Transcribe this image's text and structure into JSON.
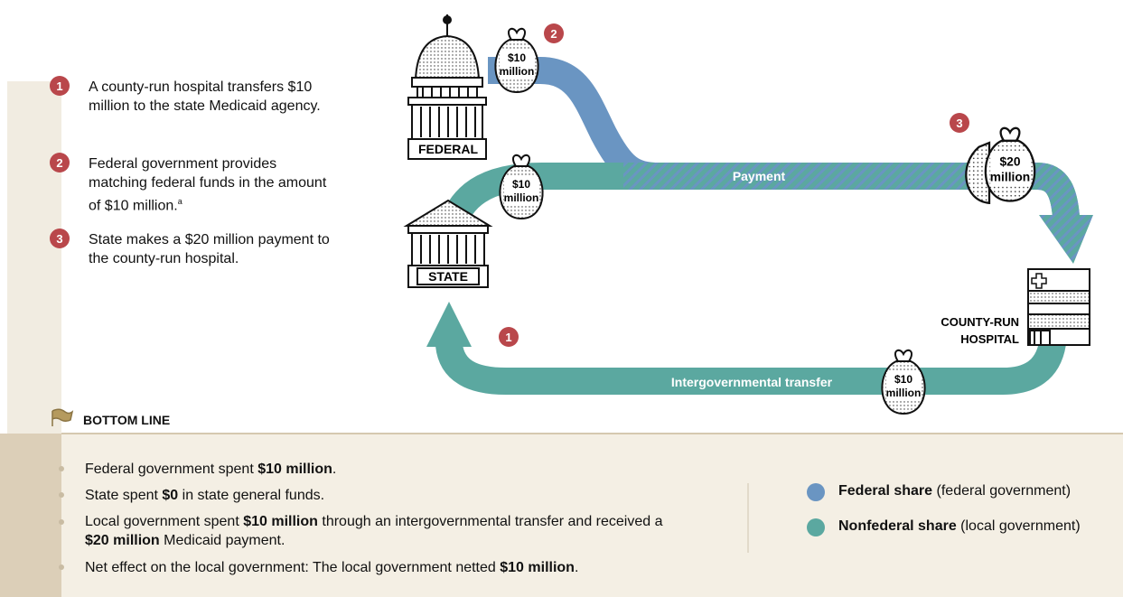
{
  "steps": [
    {
      "number": "1",
      "text": "A county-run hospital transfers $10 million to the state Medicaid agency."
    },
    {
      "number": "2",
      "text": "Federal government provides matching federal funds in the amount of $10 million.",
      "footnote": "a"
    },
    {
      "number": "3",
      "text": "State makes a $20 million payment to the county-run hospital."
    }
  ],
  "diagram": {
    "nodes": [
      {
        "lines": [
          "FEDERAL"
        ]
      },
      {
        "lines": [
          "STATE"
        ]
      },
      {
        "lines": [
          "COUNTY-RUN",
          "HOSPITAL"
        ]
      }
    ],
    "badges": [
      "2",
      "3",
      "1"
    ],
    "bags": [
      {
        "lines": [
          "$10",
          "million"
        ]
      },
      {
        "lines": [
          "$10",
          "million"
        ]
      },
      {
        "lines": [
          "$20",
          "million"
        ]
      },
      {
        "lines": [
          "$10",
          "million"
        ]
      }
    ],
    "flows": [
      "Payment",
      "Intergovernmental transfer"
    ]
  },
  "bottom_line": {
    "title": "BOTTOM LINE",
    "items": [
      [
        "Federal government spent ",
        "$10 million",
        "."
      ],
      [
        "State spent ",
        "$0",
        " in state general funds."
      ],
      [
        "Local government spent ",
        "$10 million",
        " through an intergovernmental transfer and received a ",
        "$20 million",
        " Medicaid payment."
      ],
      [
        "Net effect on the local government: The local government netted ",
        "$10 million",
        "."
      ]
    ]
  },
  "legend": [
    {
      "name": "Federal share",
      "detail": "(federal government)",
      "color": "#6a95c2"
    },
    {
      "name": "Nonfederal share",
      "detail": "(local government)",
      "color": "#5ba8a0"
    }
  ]
}
